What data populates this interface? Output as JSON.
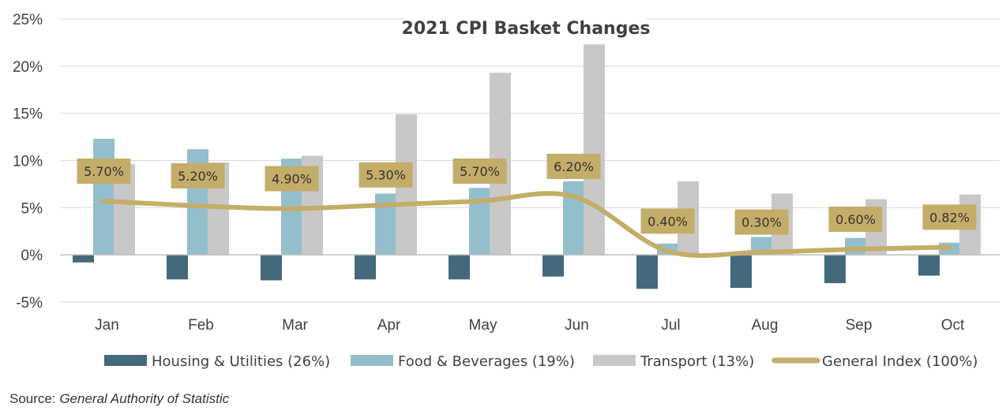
{
  "chart_data": {
    "type": "bar",
    "title": "2021 CPI Basket Changes",
    "categories": [
      "Jan",
      "Feb",
      "Mar",
      "Apr",
      "May",
      "Jun",
      "Jul",
      "Aug",
      "Sep",
      "Oct"
    ],
    "yticks": [
      "25%",
      "20%",
      "15%",
      "10%",
      "5%",
      "0%",
      "-5%"
    ],
    "ylim": [
      -5,
      25
    ],
    "grid": true,
    "legend_position": "bottom",
    "series": [
      {
        "name": "Housing & Utilities (26%)",
        "kind": "bar",
        "color": "#44697d",
        "values": [
          -0.8,
          -2.6,
          -2.7,
          -2.6,
          -2.6,
          -2.3,
          -3.6,
          -3.5,
          -3.0,
          -2.2
        ]
      },
      {
        "name": "Food & Beverages (19%)",
        "kind": "bar",
        "color": "#93bfcc",
        "values": [
          12.3,
          11.2,
          10.2,
          6.5,
          7.1,
          7.8,
          1.2,
          1.9,
          1.8,
          1.3
        ]
      },
      {
        "name": "Transport (13%)",
        "kind": "bar",
        "color": "#c8c8c8",
        "values": [
          9.6,
          9.8,
          10.5,
          14.9,
          19.3,
          22.3,
          7.8,
          6.5,
          5.9,
          6.4
        ]
      },
      {
        "name": "General Index (100%)",
        "kind": "line",
        "color": "#c4ad68",
        "values": [
          5.7,
          5.2,
          4.9,
          5.3,
          5.7,
          6.2,
          0.4,
          0.3,
          0.6,
          0.82
        ],
        "labels": [
          "5.70%",
          "5.20%",
          "4.90%",
          "5.30%",
          "5.70%",
          "6.20%",
          "0.40%",
          "0.30%",
          "0.60%",
          "0.82%"
        ]
      }
    ]
  },
  "source": {
    "prefix": "Source:",
    "name": "General Authority of Statistic"
  }
}
